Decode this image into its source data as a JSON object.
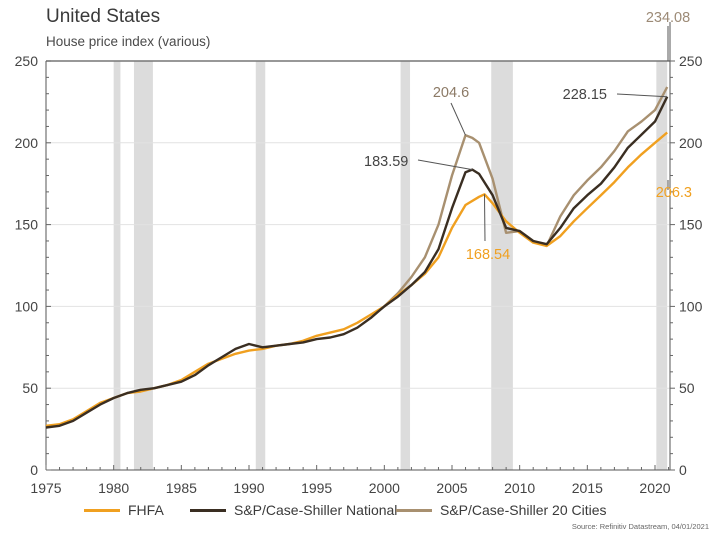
{
  "header": {
    "title": "United States",
    "subtitle": "House price index (various)",
    "source": "Source: Refinitiv Datastream, 04/01/2021"
  },
  "chart_data": {
    "type": "line",
    "title": "United States",
    "subtitle": "House price index (various)",
    "xlabel": "",
    "ylabel": "",
    "xlim": [
      1975,
      2021.2
    ],
    "ylim": [
      0,
      250
    ],
    "x_ticks": [
      1975,
      1980,
      1985,
      1990,
      1995,
      2000,
      2005,
      2010,
      2015,
      2020
    ],
    "y_ticks": [
      0,
      50,
      100,
      150,
      200,
      250
    ],
    "grid": true,
    "dual_y_axis": true,
    "legend_position": "bottom",
    "recessions": [
      {
        "start": 1980.0,
        "end": 1980.5
      },
      {
        "start": 1981.5,
        "end": 1982.9
      },
      {
        "start": 1990.5,
        "end": 1991.2
      },
      {
        "start": 2001.2,
        "end": 2001.9
      },
      {
        "start": 2007.9,
        "end": 2009.5
      },
      {
        "start": 2020.1,
        "end": 2020.9
      }
    ],
    "series": [
      {
        "name": "FHFA",
        "color": "#f0a020",
        "x": [
          1975,
          1976,
          1977,
          1978,
          1979,
          1980,
          1981,
          1982,
          1983,
          1984,
          1985,
          1986,
          1987,
          1988,
          1989,
          1990,
          1991,
          1992,
          1993,
          1994,
          1995,
          1996,
          1997,
          1998,
          1999,
          2000,
          2001,
          2002,
          2003,
          2004,
          2005,
          2006,
          2007,
          2007.4,
          2008,
          2009,
          2010,
          2011,
          2012,
          2013,
          2014,
          2015,
          2016,
          2017,
          2018,
          2019,
          2020,
          2020.9
        ],
        "values": [
          27,
          28,
          31,
          36,
          41,
          44,
          47,
          48,
          50,
          52,
          55,
          60,
          65,
          68,
          71,
          73,
          74,
          76,
          77,
          79,
          82,
          84,
          86,
          90,
          95,
          100,
          107,
          113,
          120,
          130,
          148,
          162,
          167,
          168.54,
          163,
          152,
          145,
          139,
          137,
          143,
          152,
          160,
          168,
          176,
          185,
          193,
          200,
          206.3
        ]
      },
      {
        "name": "S&P/Case-Shiller National",
        "color": "#3a2e22",
        "x": [
          1975,
          1976,
          1977,
          1978,
          1979,
          1980,
          1981,
          1982,
          1983,
          1984,
          1985,
          1986,
          1987,
          1988,
          1989,
          1990,
          1991,
          1992,
          1993,
          1994,
          1995,
          1996,
          1997,
          1998,
          1999,
          2000,
          2001,
          2002,
          2003,
          2004,
          2005,
          2006,
          2006.5,
          2007,
          2008,
          2009,
          2010,
          2011,
          2012,
          2013,
          2014,
          2015,
          2016,
          2017,
          2018,
          2019,
          2020,
          2020.9
        ],
        "values": [
          26,
          27,
          30,
          35,
          40,
          44,
          47,
          49,
          50,
          52,
          54,
          58,
          64,
          69,
          74,
          77,
          75,
          76,
          77,
          78,
          80,
          81,
          83,
          87,
          93,
          100,
          106,
          113,
          121,
          135,
          160,
          182,
          183.59,
          181,
          168,
          148,
          146,
          140,
          138,
          148,
          160,
          168,
          175,
          185,
          197,
          205,
          213,
          228.15
        ]
      },
      {
        "name": "S&P/Case-Shiller 20 Cities",
        "color": "#a89070",
        "x": [
          2000,
          2001,
          2002,
          2003,
          2004,
          2005,
          2006,
          2006.5,
          2007,
          2008,
          2009,
          2010,
          2011,
          2012,
          2013,
          2014,
          2015,
          2016,
          2017,
          2018,
          2019,
          2020,
          2020.9
        ],
        "values": [
          100,
          108,
          118,
          130,
          150,
          180,
          204.6,
          203,
          200,
          178,
          145,
          146,
          140,
          137,
          155,
          168,
          177,
          185,
          195,
          207,
          213,
          220,
          234.08
        ]
      }
    ],
    "annotations": [
      {
        "series": "S&P/Case-Shiller 20 Cities",
        "label": "204.6",
        "x": 2006,
        "y": 204.6
      },
      {
        "series": "S&P/Case-Shiller National",
        "label": "183.59",
        "x": 2006.5,
        "y": 183.59
      },
      {
        "series": "FHFA",
        "label": "168.54",
        "x": 2007.4,
        "y": 168.54
      },
      {
        "series": "S&P/Case-Shiller 20 Cities",
        "label": "234.08",
        "x": 2020.9,
        "y": 234.08
      },
      {
        "series": "S&P/Case-Shiller National",
        "label": "228.15",
        "x": 2020.9,
        "y": 228.15
      },
      {
        "series": "FHFA",
        "label": "206.3",
        "x": 2020.9,
        "y": 206.3
      }
    ]
  },
  "legend": [
    {
      "label": "FHFA",
      "color": "#f0a020"
    },
    {
      "label": "S&P/Case-Shiller National",
      "color": "#3a2e22"
    },
    {
      "label": "S&P/Case-Shiller 20 Cities",
      "color": "#a89070"
    }
  ]
}
